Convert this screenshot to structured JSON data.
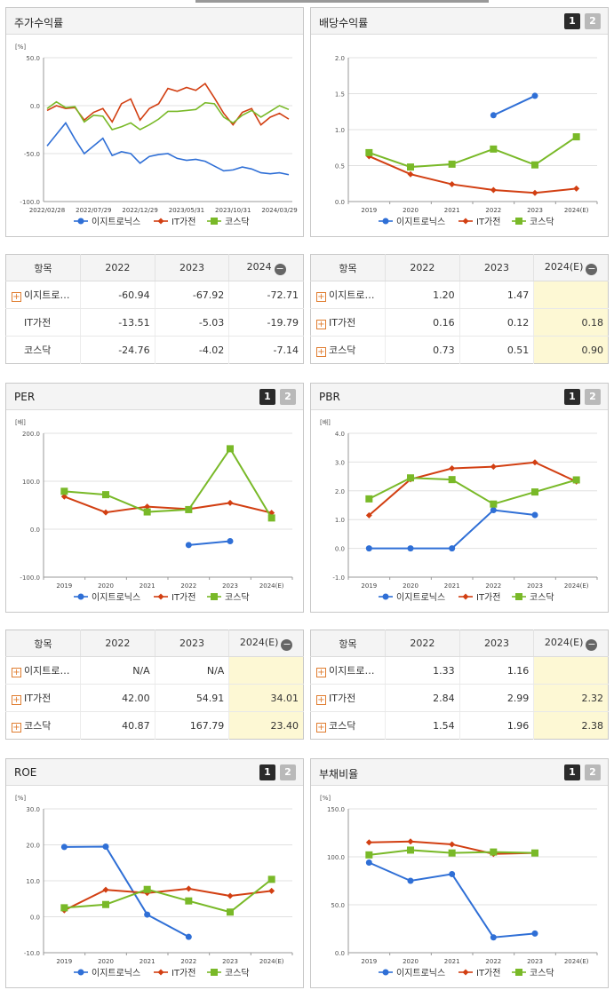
{
  "colors": {
    "s1": "#2f6fd6",
    "s2": "#d23f12",
    "s3": "#79b928",
    "grid": "#e0e0e0",
    "axis": "#999999",
    "highlight": "#fdf8d4"
  },
  "legend": [
    "이지트로닉스",
    "IT가전",
    "코스닥"
  ],
  "tab_buttons": [
    "1",
    "2"
  ],
  "panels": {
    "stock": {
      "title": "주가수익률"
    },
    "div": {
      "title": "배당수익률"
    },
    "per": {
      "title": "PER"
    },
    "pbr": {
      "title": "PBR"
    },
    "roe": {
      "title": "ROE"
    },
    "debt": {
      "title": "부채비율"
    }
  },
  "tables": {
    "stock": {
      "headers": [
        "항목",
        "2022",
        "2023",
        "2024"
      ],
      "rows": [
        {
          "name": "이지트로…",
          "plus": true,
          "values": [
            "-60.94",
            "-67.92",
            "-72.71"
          ]
        },
        {
          "name": "IT가전",
          "plus": false,
          "values": [
            "-13.51",
            "-5.03",
            "-19.79"
          ]
        },
        {
          "name": "코스닥",
          "plus": false,
          "values": [
            "-24.76",
            "-4.02",
            "-7.14"
          ]
        }
      ]
    },
    "div": {
      "headers": [
        "항목",
        "2022",
        "2023",
        "2024(E)"
      ],
      "rows": [
        {
          "name": "이지트로…",
          "plus": true,
          "values": [
            "1.20",
            "1.47",
            ""
          ]
        },
        {
          "name": "IT가전",
          "plus": true,
          "values": [
            "0.16",
            "0.12",
            "0.18"
          ]
        },
        {
          "name": "코스닥",
          "plus": true,
          "values": [
            "0.73",
            "0.51",
            "0.90"
          ]
        }
      ]
    },
    "per": {
      "headers": [
        "항목",
        "2022",
        "2023",
        "2024(E)"
      ],
      "rows": [
        {
          "name": "이지트로…",
          "plus": true,
          "values": [
            "N/A",
            "N/A",
            ""
          ]
        },
        {
          "name": "IT가전",
          "plus": true,
          "values": [
            "42.00",
            "54.91",
            "34.01"
          ]
        },
        {
          "name": "코스닥",
          "plus": true,
          "values": [
            "40.87",
            "167.79",
            "23.40"
          ]
        }
      ]
    },
    "pbr": {
      "headers": [
        "항목",
        "2022",
        "2023",
        "2024(E)"
      ],
      "rows": [
        {
          "name": "이지트로…",
          "plus": true,
          "values": [
            "1.33",
            "1.16",
            ""
          ]
        },
        {
          "name": "IT가전",
          "plus": true,
          "values": [
            "2.84",
            "2.99",
            "2.32"
          ]
        },
        {
          "name": "코스닥",
          "plus": true,
          "values": [
            "1.54",
            "1.96",
            "2.38"
          ]
        }
      ]
    }
  },
  "chart_data": [
    {
      "id": "stock",
      "type": "line",
      "title": "주가수익률",
      "ylabel": "[%]",
      "ylim": [
        -100,
        50
      ],
      "yticks": [
        -100,
        -50,
        0,
        50
      ],
      "ytick_labels": [
        "-100.0",
        "-50.0",
        "0.0",
        "50.0"
      ],
      "xlim": [
        0,
        26
      ],
      "xtick_labels": [
        "2022/02/28",
        "2022/07/29",
        "2022/12/29",
        "2023/05/31",
        "2023/10/31",
        "2024/03/29"
      ],
      "xtick_pos": [
        0,
        5,
        10,
        15,
        20,
        25
      ],
      "markers": false,
      "series": [
        {
          "name": "이지트로닉스",
          "values": [
            -42,
            -30,
            -18,
            -35,
            -50,
            -42,
            -34,
            -52,
            -48,
            -50,
            -60,
            -53,
            -51,
            -50,
            -55,
            -57,
            -56,
            -58,
            -63,
            -68,
            -67,
            -64,
            -66,
            -70,
            -71,
            -70,
            -72
          ]
        },
        {
          "name": "IT가전",
          "values": [
            -5,
            0,
            -3,
            -2,
            -15,
            -7,
            -3,
            -17,
            2,
            7,
            -15,
            -3,
            2,
            18,
            15,
            19,
            16,
            23,
            8,
            -8,
            -20,
            -7,
            -3,
            -20,
            -12,
            -8,
            -14
          ]
        },
        {
          "name": "코스닥",
          "values": [
            -3,
            4,
            -2,
            -1,
            -17,
            -10,
            -11,
            -25,
            -22,
            -18,
            -25,
            -20,
            -14,
            -6,
            -6,
            -5,
            -4,
            3,
            2,
            -12,
            -18,
            -10,
            -5,
            -12,
            -6,
            0,
            -4
          ]
        }
      ]
    },
    {
      "id": "div",
      "type": "line",
      "title": "배당수익률",
      "ylabel": "",
      "ylim": [
        0,
        2
      ],
      "yticks": [
        0,
        0.5,
        1,
        1.5,
        2
      ],
      "ytick_labels": [
        "0.0",
        "0.5",
        "1.0",
        "1.5",
        "2.0"
      ],
      "categories": [
        "2019",
        "2020",
        "2021",
        "2022",
        "2023",
        "2024(E)"
      ],
      "markers": true,
      "series": [
        {
          "name": "이지트로닉스",
          "values": [
            null,
            null,
            null,
            1.2,
            1.47,
            null
          ]
        },
        {
          "name": "IT가전",
          "values": [
            0.63,
            0.38,
            0.24,
            0.16,
            0.12,
            0.18
          ]
        },
        {
          "name": "코스닥",
          "values": [
            0.68,
            0.48,
            0.52,
            0.73,
            0.51,
            0.9
          ]
        }
      ]
    },
    {
      "id": "per",
      "type": "line",
      "title": "PER",
      "ylabel": "[배]",
      "ylim": [
        -100,
        200
      ],
      "yticks": [
        -100,
        0,
        100,
        200
      ],
      "ytick_labels": [
        "-100.0",
        "0.0",
        "100.0",
        "200.0"
      ],
      "categories": [
        "2019",
        "2020",
        "2021",
        "2022",
        "2023",
        "2024(E)"
      ],
      "markers": true,
      "series": [
        {
          "name": "이지트로닉스",
          "values": [
            null,
            null,
            null,
            -33,
            -25,
            null
          ]
        },
        {
          "name": "IT가전",
          "values": [
            68,
            35,
            47,
            42.0,
            54.91,
            34.01
          ]
        },
        {
          "name": "코스닥",
          "values": [
            79,
            72,
            36,
            40.87,
            167.79,
            23.4
          ]
        }
      ]
    },
    {
      "id": "pbr",
      "type": "line",
      "title": "PBR",
      "ylabel": "[배]",
      "ylim": [
        -1,
        4
      ],
      "yticks": [
        -1,
        0,
        1,
        2,
        3,
        4
      ],
      "ytick_labels": [
        "-1.0",
        "0.0",
        "1.0",
        "2.0",
        "3.0",
        "4.0"
      ],
      "categories": [
        "2019",
        "2020",
        "2021",
        "2022",
        "2023",
        "2024(E)"
      ],
      "markers": true,
      "series": [
        {
          "name": "이지트로닉스",
          "values": [
            0,
            0,
            0,
            1.33,
            1.16,
            null
          ]
        },
        {
          "name": "IT가전",
          "values": [
            1.15,
            2.4,
            2.78,
            2.84,
            2.99,
            2.32
          ]
        },
        {
          "name": "코스닥",
          "values": [
            1.72,
            2.45,
            2.39,
            1.54,
            1.96,
            2.38
          ]
        }
      ]
    },
    {
      "id": "roe",
      "type": "line",
      "title": "ROE",
      "ylabel": "[%]",
      "ylim": [
        -10,
        30
      ],
      "yticks": [
        -10,
        0,
        10,
        20,
        30
      ],
      "ytick_labels": [
        "-10.0",
        "0.0",
        "10.0",
        "20.0",
        "30.0"
      ],
      "categories": [
        "2019",
        "2020",
        "2021",
        "2022",
        "2023",
        "2024(E)"
      ],
      "markers": true,
      "series": [
        {
          "name": "이지트로닉스",
          "values": [
            19.4,
            19.5,
            0.6,
            -5.6,
            null,
            null
          ]
        },
        {
          "name": "IT가전",
          "values": [
            1.8,
            7.5,
            6.6,
            7.8,
            5.8,
            7.2
          ]
        },
        {
          "name": "코스닥",
          "values": [
            2.5,
            3.4,
            7.6,
            4.4,
            1.3,
            10.4
          ]
        }
      ]
    },
    {
      "id": "debt",
      "type": "line",
      "title": "부채비율",
      "ylabel": "[%]",
      "ylim": [
        0,
        150
      ],
      "yticks": [
        0,
        50,
        100,
        150
      ],
      "ytick_labels": [
        "0.0",
        "50.0",
        "100.0",
        "150.0"
      ],
      "categories": [
        "2019",
        "2020",
        "2021",
        "2022",
        "2023",
        "2024(E)"
      ],
      "markers": true,
      "series": [
        {
          "name": "이지트로닉스",
          "values": [
            94,
            75,
            82,
            16,
            20,
            null
          ]
        },
        {
          "name": "IT가전",
          "values": [
            115,
            116,
            113,
            103,
            104,
            null
          ]
        },
        {
          "name": "코스닥",
          "values": [
            102,
            107,
            104,
            105,
            104,
            null
          ]
        }
      ]
    }
  ]
}
